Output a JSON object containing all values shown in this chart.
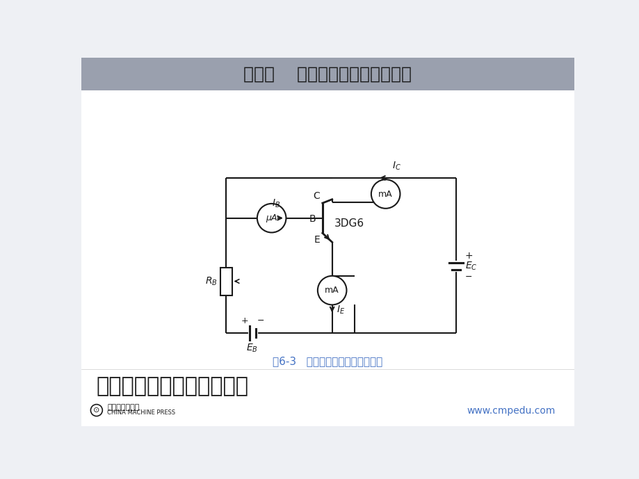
{
  "title": "第一节    晶体三极管及其放大作用",
  "title_bg_color": "#9aa0ae",
  "title_text_color": "#1a1a1a",
  "bg_color": "#eef0f4",
  "caption": "图6-3   晶体管电流放大的实验电路",
  "caption_color": "#4472c4",
  "bottom_text": "二、晶体管的电流放大作用",
  "bottom_right_text": "www.cmpedu.com",
  "line_color": "#1a1a1a",
  "text_color": "#1a1a1a",
  "font_cjk": "Noto Sans CJK SC",
  "font_fallback": "DejaVu Sans"
}
